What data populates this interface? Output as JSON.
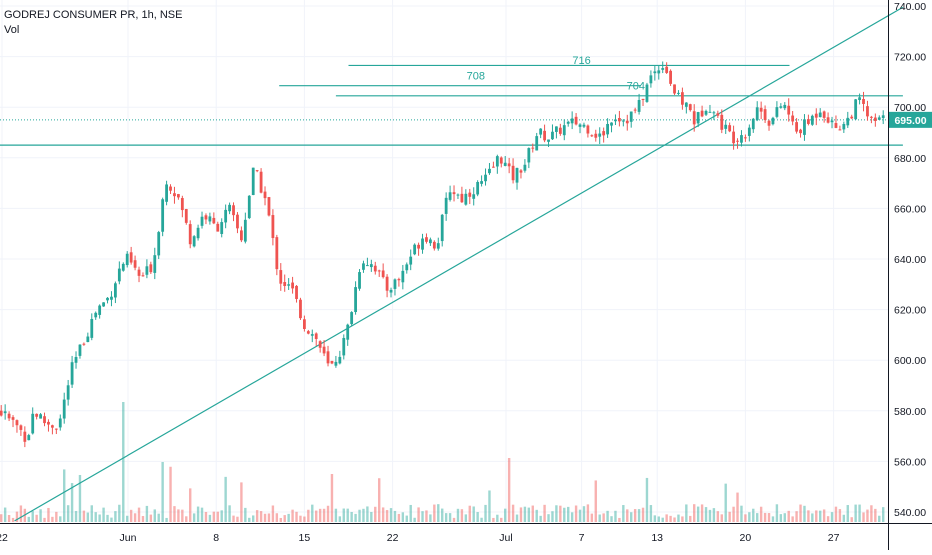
{
  "header": {
    "symbol": "GODREJ CONSUMER PR, 1h, NSE",
    "volume_label": "Vol"
  },
  "colors": {
    "up": "#26a69a",
    "down": "#ef5350",
    "line": "#26a69a",
    "last_price_bg": "#26a69a",
    "grid": "#f0f3fa",
    "axis_text": "#131722"
  },
  "chart_data": {
    "type": "candlestick",
    "instrument": "GODREJ CONSUMER PR",
    "interval": "1h",
    "exchange": "NSE",
    "ylim": [
      536,
      742
    ],
    "yticks": [
      540,
      560,
      580,
      600,
      620,
      640,
      660,
      680,
      700,
      720,
      740
    ],
    "ytick_labels": [
      "540.00",
      "560.00",
      "580.00",
      "600.00",
      "620.00",
      "640.00",
      "660.00",
      "680.00",
      "700.00",
      "720.00",
      "740.00"
    ],
    "xticks": [
      {
        "label": "22",
        "day": -10
      },
      {
        "label": "Jun",
        "day": 0
      },
      {
        "label": "8",
        "day": 7
      },
      {
        "label": "15",
        "day": 14
      },
      {
        "label": "22",
        "day": 21
      },
      {
        "label": "Jul",
        "day": 30
      },
      {
        "label": "7",
        "day": 36
      },
      {
        "label": "13",
        "day": 42
      },
      {
        "label": "20",
        "day": 49
      },
      {
        "label": "27",
        "day": 56
      }
    ],
    "xlim": [
      -13.5,
      61.5
    ],
    "last_price": 695.0,
    "last_price_label": "695.00",
    "annotations": [
      {
        "text": "708",
        "price": 711,
        "day": 27.6
      },
      {
        "text": "716",
        "price": 717,
        "day": 36
      },
      {
        "text": "704",
        "price": 707,
        "day": 40.3
      }
    ],
    "horizontal_lines": [
      {
        "price": 716.5,
        "day_start": 17.5,
        "day_end": 52.5
      },
      {
        "price": 708.5,
        "day_start": 12,
        "day_end": 40.7
      },
      {
        "price": 704.5,
        "day_start": 16.5,
        "day_end": 61.5
      },
      {
        "price": 685,
        "day_start": -13.5,
        "day_end": 61.5
      }
    ],
    "trendline": {
      "day_start": -9,
      "price_start": 536.5,
      "day_end": 61.5,
      "price_end": 739.5
    },
    "close_path": [
      [
        -13.5,
        552
      ],
      [
        -12.5,
        560
      ],
      [
        -11.5,
        575
      ],
      [
        -11,
        584
      ],
      [
        -10,
        579
      ],
      [
        -9,
        575
      ],
      [
        -8,
        569
      ],
      [
        -7.5,
        580
      ],
      [
        -6.5,
        575
      ],
      [
        -5.5,
        574
      ],
      [
        -4.5,
        596
      ],
      [
        -3.5,
        608
      ],
      [
        -2.5,
        620
      ],
      [
        -1.5,
        625
      ],
      [
        -0.5,
        638
      ],
      [
        0,
        640
      ],
      [
        1,
        632
      ],
      [
        2,
        638
      ],
      [
        3,
        672
      ],
      [
        4,
        664
      ],
      [
        5,
        647
      ],
      [
        6,
        658
      ],
      [
        7,
        652
      ],
      [
        8,
        660
      ],
      [
        9,
        648
      ],
      [
        10,
        676
      ],
      [
        11,
        662
      ],
      [
        12,
        632
      ],
      [
        13,
        628
      ],
      [
        14,
        614
      ],
      [
        15,
        608
      ],
      [
        16,
        596
      ],
      [
        17,
        605
      ],
      [
        17.5,
        614
      ],
      [
        18.5,
        640
      ],
      [
        19.5,
        638
      ],
      [
        20.5,
        628
      ],
      [
        21.5,
        632
      ],
      [
        22.5,
        642
      ],
      [
        23.5,
        650
      ],
      [
        24.5,
        645
      ],
      [
        25.5,
        668
      ],
      [
        26.5,
        664
      ],
      [
        27.5,
        668
      ],
      [
        28.5,
        672
      ],
      [
        29.5,
        681
      ],
      [
        30.5,
        672
      ],
      [
        31.5,
        678
      ],
      [
        32.5,
        690
      ],
      [
        33.5,
        688
      ],
      [
        34.5,
        692
      ],
      [
        35.5,
        694
      ],
      [
        36.5,
        692
      ],
      [
        37.5,
        688
      ],
      [
        38.5,
        697
      ],
      [
        39.5,
        695
      ],
      [
        40.5,
        700
      ],
      [
        41.5,
        712
      ],
      [
        42.5,
        718
      ],
      [
        43.5,
        704
      ],
      [
        44.5,
        700
      ],
      [
        45,
        694
      ],
      [
        46,
        702
      ],
      [
        47,
        694
      ],
      [
        48,
        688
      ],
      [
        49,
        690
      ],
      [
        50,
        700
      ],
      [
        51,
        694
      ],
      [
        52,
        702
      ],
      [
        53,
        690
      ],
      [
        54,
        694
      ],
      [
        55,
        700
      ],
      [
        56,
        692
      ],
      [
        57,
        694
      ],
      [
        58,
        703
      ],
      [
        59,
        694
      ],
      [
        60,
        695
      ]
    ]
  }
}
